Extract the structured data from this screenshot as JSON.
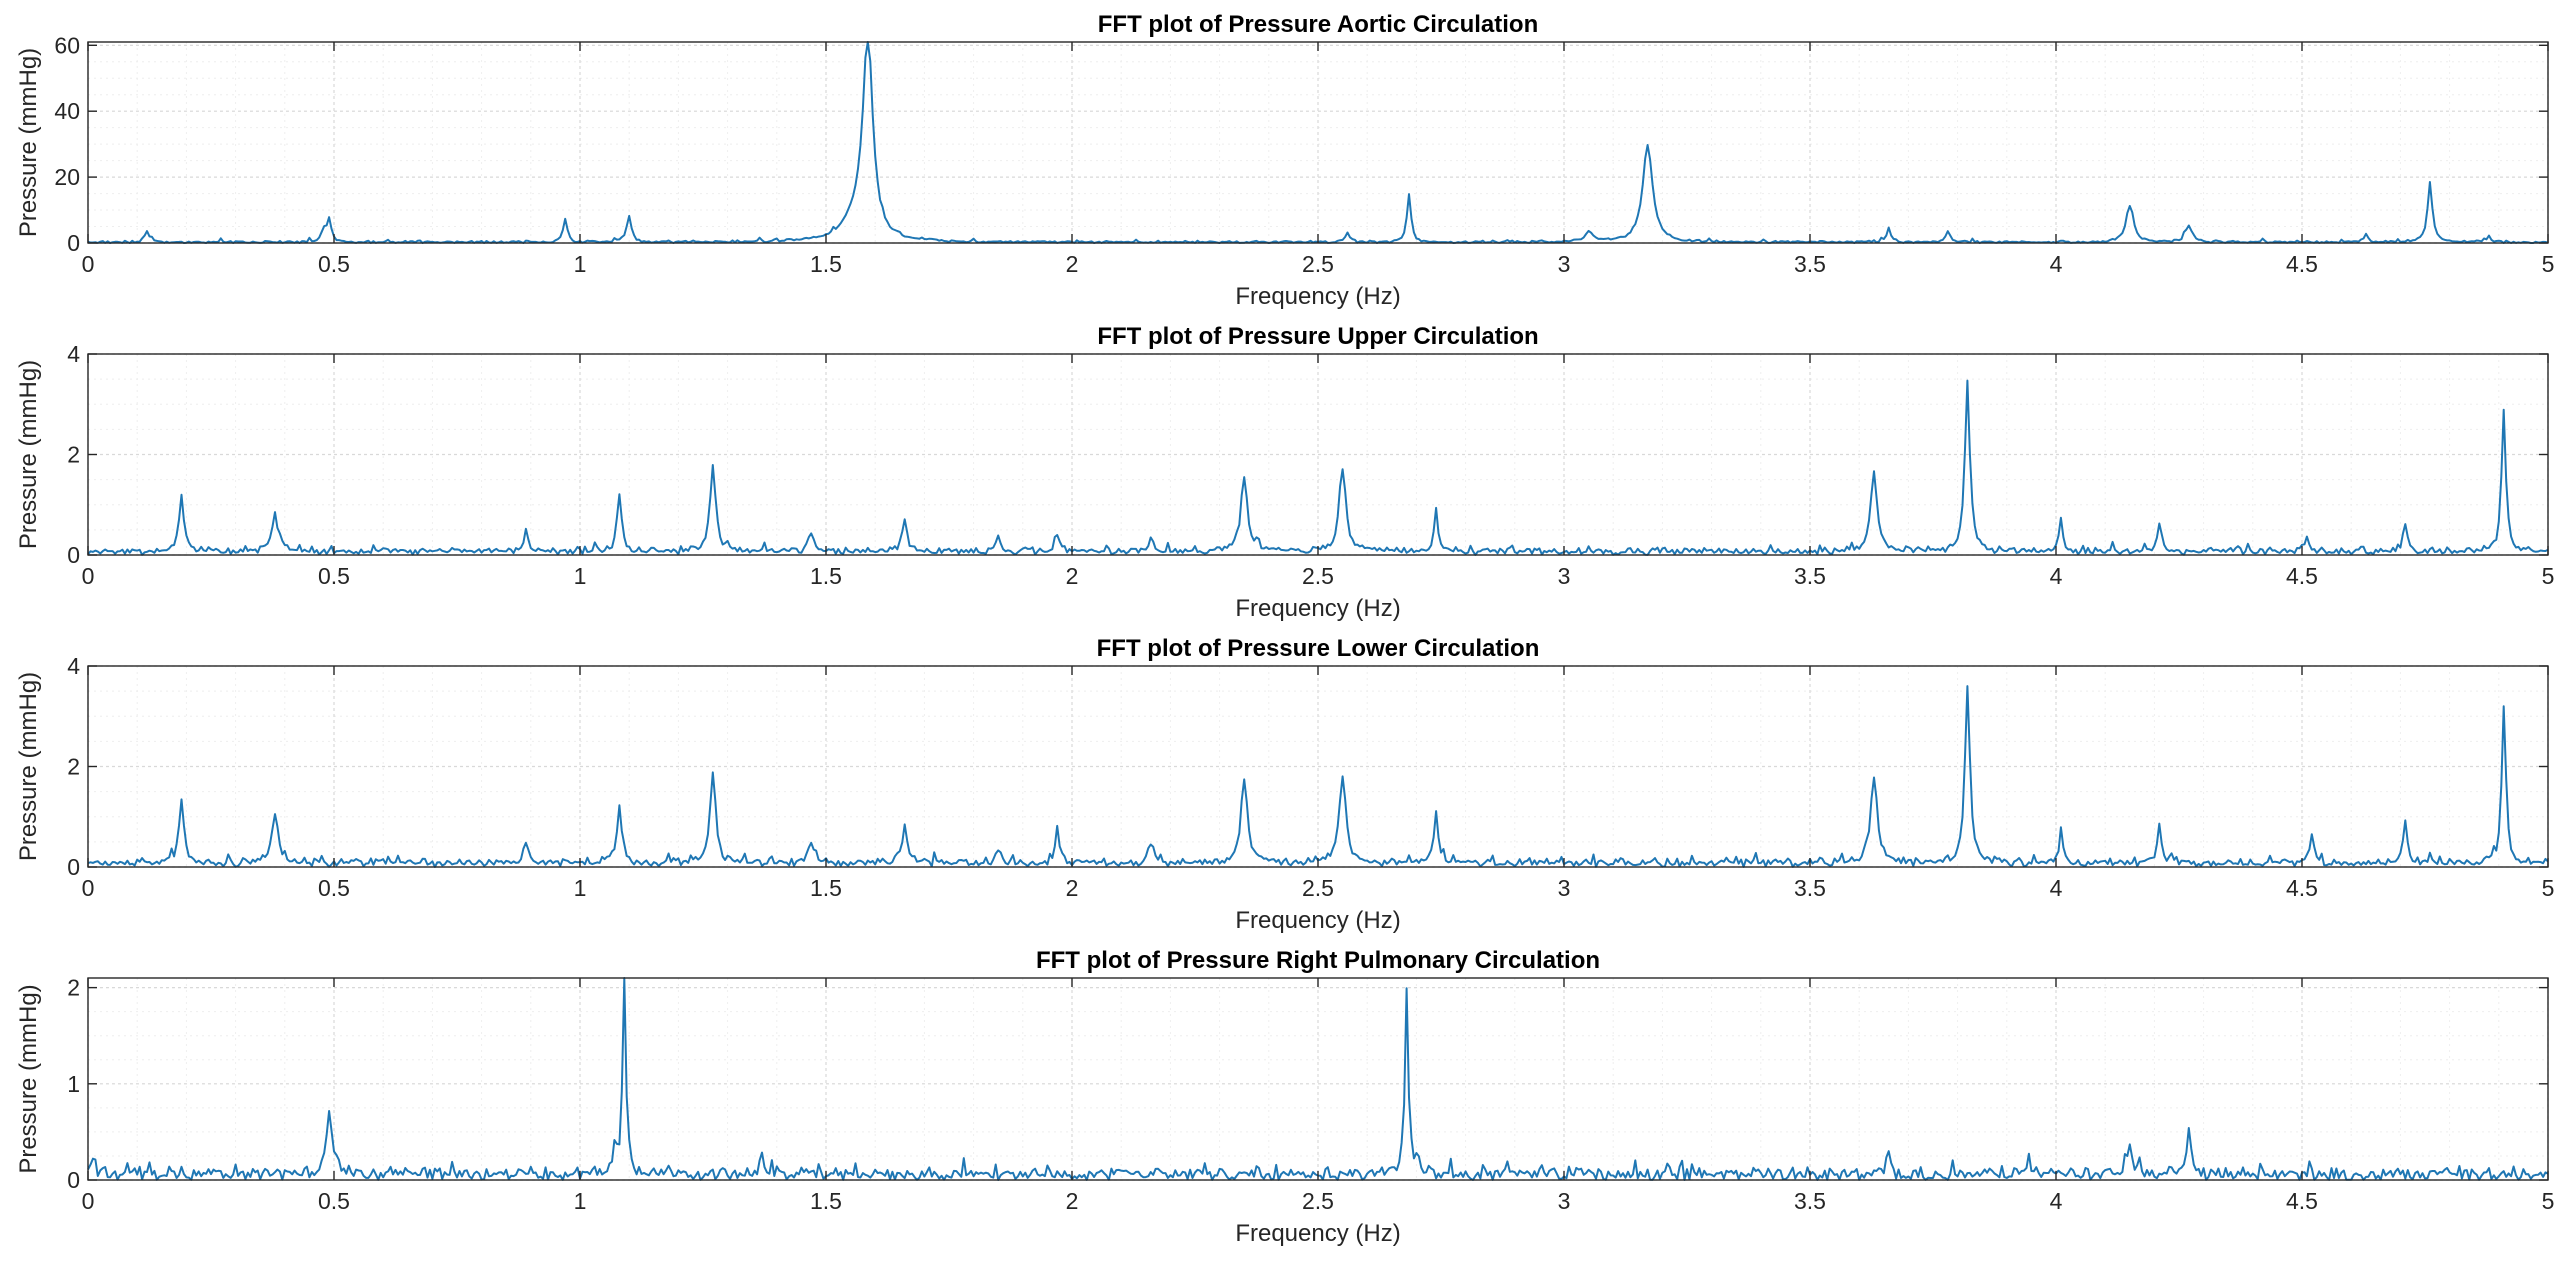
{
  "chart_data": [
    {
      "type": "line",
      "title": "FFT plot of Pressure Aortic Circulation",
      "xlabel": "Frequency (Hz)",
      "ylabel": "Pressure (mmHg)",
      "xlim": [
        0,
        5
      ],
      "ylim": [
        0,
        61
      ],
      "xticks": [
        0,
        0.5,
        1,
        1.5,
        2,
        2.5,
        3,
        3.5,
        4,
        4.5,
        5
      ],
      "xtick_labels": [
        "0",
        "0.5",
        "1",
        "1.5",
        "2",
        "2.5",
        "3",
        "3.5",
        "4",
        "4.5",
        "5"
      ],
      "yticks": [
        0,
        20,
        40,
        60
      ],
      "ytick_labels": [
        "0",
        "20",
        "40",
        "60"
      ],
      "grid": true,
      "baseline": 0.25,
      "noise": 0.35,
      "peaks": [
        {
          "x": 0.12,
          "y": 3.5,
          "w": 0.006
        },
        {
          "x": 0.48,
          "y": 3.5,
          "w": 0.006
        },
        {
          "x": 0.49,
          "y": 6.5,
          "w": 0.005
        },
        {
          "x": 0.97,
          "y": 7.2,
          "w": 0.005
        },
        {
          "x": 1.1,
          "y": 7.5,
          "w": 0.006
        },
        {
          "x": 1.585,
          "y": 61,
          "w": 0.012
        },
        {
          "x": 1.56,
          "y": 6,
          "w": 0.03
        },
        {
          "x": 2.56,
          "y": 3,
          "w": 0.005
        },
        {
          "x": 2.685,
          "y": 14.5,
          "w": 0.005
        },
        {
          "x": 3.05,
          "y": 3,
          "w": 0.01
        },
        {
          "x": 3.17,
          "y": 29.5,
          "w": 0.012
        },
        {
          "x": 3.66,
          "y": 4.5,
          "w": 0.005
        },
        {
          "x": 3.78,
          "y": 3.5,
          "w": 0.005
        },
        {
          "x": 4.15,
          "y": 11,
          "w": 0.009
        },
        {
          "x": 4.27,
          "y": 5,
          "w": 0.008
        },
        {
          "x": 4.63,
          "y": 2.5,
          "w": 0.005
        },
        {
          "x": 4.76,
          "y": 18,
          "w": 0.006
        },
        {
          "x": 4.88,
          "y": 1.5,
          "w": 0.005
        }
      ]
    },
    {
      "type": "line",
      "title": "FFT plot of Pressure Upper Circulation",
      "xlabel": "Frequency (Hz)",
      "ylabel": "Pressure (mmHg)",
      "xlim": [
        0,
        5
      ],
      "ylim": [
        0,
        4
      ],
      "xticks": [
        0,
        0.5,
        1,
        1.5,
        2,
        2.5,
        3,
        3.5,
        4,
        4.5,
        5
      ],
      "xtick_labels": [
        "0",
        "0.5",
        "1",
        "1.5",
        "2",
        "2.5",
        "3",
        "3.5",
        "4",
        "4.5",
        "5"
      ],
      "yticks": [
        0,
        2,
        4
      ],
      "ytick_labels": [
        "0",
        "2",
        "4"
      ],
      "grid": true,
      "baseline": 0.07,
      "noise": 0.06,
      "peaks": [
        {
          "x": 0.19,
          "y": 1.1,
          "w": 0.006
        },
        {
          "x": 0.38,
          "y": 0.75,
          "w": 0.008
        },
        {
          "x": 0.89,
          "y": 0.42,
          "w": 0.005
        },
        {
          "x": 1.08,
          "y": 1.1,
          "w": 0.006
        },
        {
          "x": 1.27,
          "y": 1.7,
          "w": 0.007
        },
        {
          "x": 1.47,
          "y": 0.4,
          "w": 0.007
        },
        {
          "x": 1.66,
          "y": 0.55,
          "w": 0.007
        },
        {
          "x": 1.85,
          "y": 0.3,
          "w": 0.005
        },
        {
          "x": 1.97,
          "y": 0.35,
          "w": 0.005
        },
        {
          "x": 2.16,
          "y": 0.3,
          "w": 0.005
        },
        {
          "x": 2.35,
          "y": 1.45,
          "w": 0.008
        },
        {
          "x": 2.55,
          "y": 1.7,
          "w": 0.008
        },
        {
          "x": 2.74,
          "y": 0.85,
          "w": 0.005
        },
        {
          "x": 3.63,
          "y": 1.6,
          "w": 0.008
        },
        {
          "x": 3.82,
          "y": 3.35,
          "w": 0.006
        },
        {
          "x": 4.01,
          "y": 0.7,
          "w": 0.004
        },
        {
          "x": 4.21,
          "y": 0.6,
          "w": 0.005
        },
        {
          "x": 4.51,
          "y": 0.25,
          "w": 0.005
        },
        {
          "x": 4.71,
          "y": 0.55,
          "w": 0.005
        },
        {
          "x": 4.91,
          "y": 2.85,
          "w": 0.005
        }
      ]
    },
    {
      "type": "line",
      "title": "FFT plot of Pressure Lower Circulation",
      "xlabel": "Frequency (Hz)",
      "ylabel": "Pressure (mmHg)",
      "xlim": [
        0,
        5
      ],
      "ylim": [
        0,
        4
      ],
      "xticks": [
        0,
        0.5,
        1,
        1.5,
        2,
        2.5,
        3,
        3.5,
        4,
        4.5,
        5
      ],
      "xtick_labels": [
        "0",
        "0.5",
        "1",
        "1.5",
        "2",
        "2.5",
        "3",
        "3.5",
        "4",
        "4.5",
        "5"
      ],
      "yticks": [
        0,
        2,
        4
      ],
      "ytick_labels": [
        "0",
        "2",
        "4"
      ],
      "grid": true,
      "baseline": 0.08,
      "noise": 0.07,
      "peaks": [
        {
          "x": 0.19,
          "y": 1.25,
          "w": 0.006
        },
        {
          "x": 0.38,
          "y": 1.0,
          "w": 0.008
        },
        {
          "x": 0.89,
          "y": 0.45,
          "w": 0.005
        },
        {
          "x": 1.08,
          "y": 1.15,
          "w": 0.006
        },
        {
          "x": 1.27,
          "y": 1.75,
          "w": 0.007
        },
        {
          "x": 1.47,
          "y": 0.42,
          "w": 0.007
        },
        {
          "x": 1.66,
          "y": 0.7,
          "w": 0.007
        },
        {
          "x": 1.85,
          "y": 0.3,
          "w": 0.005
        },
        {
          "x": 1.97,
          "y": 0.7,
          "w": 0.005
        },
        {
          "x": 2.16,
          "y": 0.42,
          "w": 0.005
        },
        {
          "x": 2.35,
          "y": 1.7,
          "w": 0.008
        },
        {
          "x": 2.55,
          "y": 1.7,
          "w": 0.008
        },
        {
          "x": 2.74,
          "y": 1.05,
          "w": 0.005
        },
        {
          "x": 3.63,
          "y": 1.75,
          "w": 0.008
        },
        {
          "x": 3.82,
          "y": 3.5,
          "w": 0.006
        },
        {
          "x": 4.01,
          "y": 0.7,
          "w": 0.004
        },
        {
          "x": 4.21,
          "y": 0.75,
          "w": 0.005
        },
        {
          "x": 4.52,
          "y": 0.5,
          "w": 0.006
        },
        {
          "x": 4.71,
          "y": 0.9,
          "w": 0.005
        },
        {
          "x": 4.91,
          "y": 3.15,
          "w": 0.005
        }
      ]
    },
    {
      "type": "line",
      "title": "FFT plot of Pressure Right Pulmonary Circulation",
      "xlabel": "Frequency (Hz)",
      "ylabel": "Pressure (mmHg)",
      "xlim": [
        0,
        5
      ],
      "ylim": [
        0,
        2.1
      ],
      "xticks": [
        0,
        0.5,
        1,
        1.5,
        2,
        2.5,
        3,
        3.5,
        4,
        4.5,
        5
      ],
      "xtick_labels": [
        "0",
        "0.5",
        "1",
        "1.5",
        "2",
        "2.5",
        "3",
        "3.5",
        "4",
        "4.5",
        "5"
      ],
      "yticks": [
        0,
        1,
        2
      ],
      "ytick_labels": [
        "0",
        "1",
        "2"
      ],
      "grid": true,
      "baseline": 0.06,
      "noise": 0.06,
      "peaks": [
        {
          "x": 0.01,
          "y": 0.15,
          "w": 0.005
        },
        {
          "x": 0.49,
          "y": 0.62,
          "w": 0.008
        },
        {
          "x": 1.09,
          "y": 2.1,
          "w": 0.004
        },
        {
          "x": 1.07,
          "y": 0.25,
          "w": 0.006
        },
        {
          "x": 1.37,
          "y": 0.18,
          "w": 0.005
        },
        {
          "x": 2.68,
          "y": 1.95,
          "w": 0.004
        },
        {
          "x": 2.7,
          "y": 0.2,
          "w": 0.005
        },
        {
          "x": 3.66,
          "y": 0.28,
          "w": 0.005
        },
        {
          "x": 4.15,
          "y": 0.28,
          "w": 0.007
        },
        {
          "x": 4.27,
          "y": 0.47,
          "w": 0.006
        }
      ]
    }
  ]
}
